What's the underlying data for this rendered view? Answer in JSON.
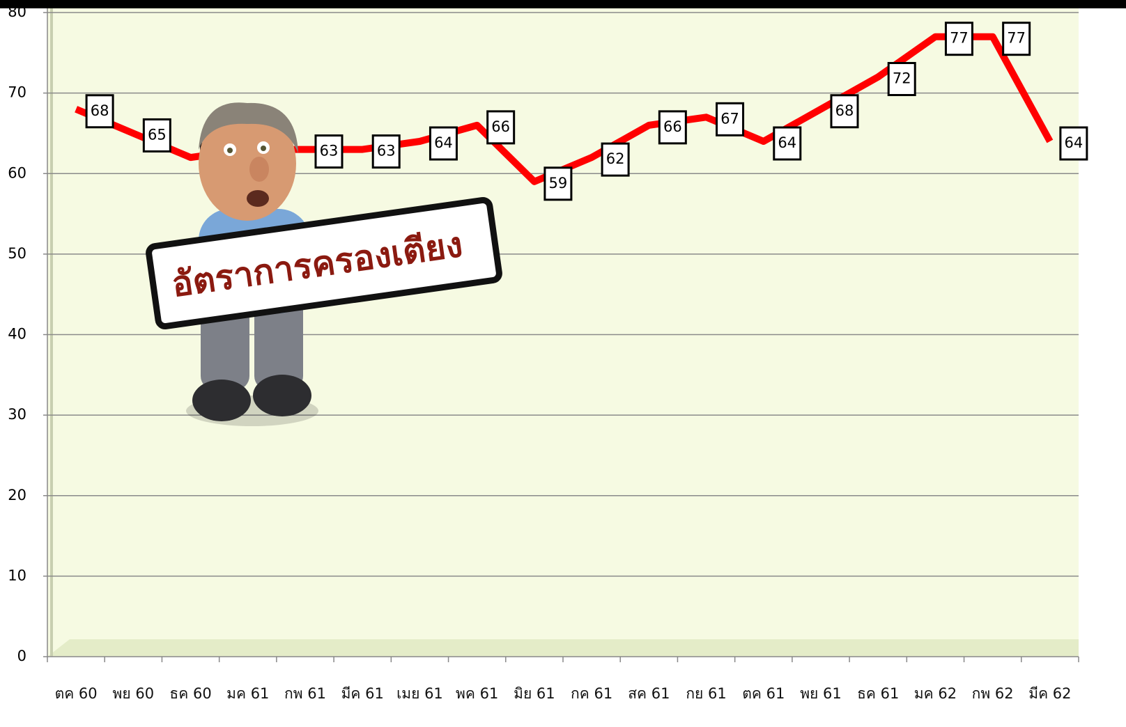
{
  "chart_data": {
    "type": "line",
    "title": "อัตราการครองเตียง",
    "categories": [
      "ตค 60",
      "พย 60",
      "ธค 60",
      "มค 61",
      "กพ 61",
      "มีค 61",
      "เมย 61",
      "พค 61",
      "มิย 61",
      "กค 61",
      "สค 61",
      "กย 61",
      "ตค 61",
      "พย 61",
      "ธค 61",
      "มค 62",
      "กพ 62",
      "มีค 62"
    ],
    "values": [
      68,
      65,
      62,
      63,
      63,
      63,
      64,
      66,
      59,
      62,
      66,
      67,
      64,
      68,
      72,
      77,
      77,
      64
    ],
    "color": "#ff0000",
    "ylim": [
      0,
      80
    ],
    "yticks": [
      0,
      10,
      20,
      30,
      40,
      50,
      60,
      70,
      80
    ],
    "grid": true
  }
}
